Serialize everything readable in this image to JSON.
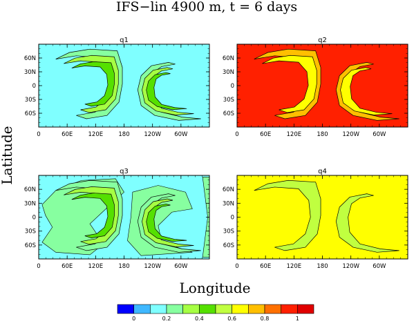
{
  "figure": {
    "title": "IFS−lin 4900 m, t = 6 days",
    "xlabel": "Longitude",
    "ylabel": "Latitude"
  },
  "chart_data": {
    "type": "heatmap",
    "title": "IFS−lin 4900 m, t = 6 days",
    "xlabel": "Longitude",
    "ylabel": "Latitude",
    "x_ticks": [
      "0",
      "60E",
      "120E",
      "180",
      "120W",
      "60W"
    ],
    "y_ticks": [
      "60N",
      "30N",
      "0",
      "30S",
      "60S"
    ],
    "xlim": [
      0,
      360
    ],
    "ylim": [
      -90,
      90
    ],
    "panels": [
      {
        "name": "q1",
        "background": 0.1,
        "contour_levels": [
          0.2,
          0.3,
          0.4
        ]
      },
      {
        "name": "q2",
        "background": 0.9,
        "contour_levels": [
          0.7,
          0.6
        ]
      },
      {
        "name": "q3",
        "background": 0.1,
        "contour_levels": [
          0.2,
          0.3,
          0.4
        ]
      },
      {
        "name": "q4",
        "background": 0.6,
        "contour_levels": [
          0.5
        ]
      }
    ],
    "colorbar": {
      "tick_labels": [
        "0",
        "0.2",
        "0.4",
        "0.6",
        "0.8",
        "1"
      ],
      "tick_values": [
        0,
        0.2,
        0.4,
        0.6,
        0.8,
        1
      ],
      "colors": [
        "#0000ff",
        "#3fb8ff",
        "#7fffff",
        "#87ffa0",
        "#a6ff43",
        "#55e000",
        "#c0ff40",
        "#ffff00",
        "#ffbf00",
        "#ff7000",
        "#ff2000",
        "#e00000"
      ]
    }
  }
}
